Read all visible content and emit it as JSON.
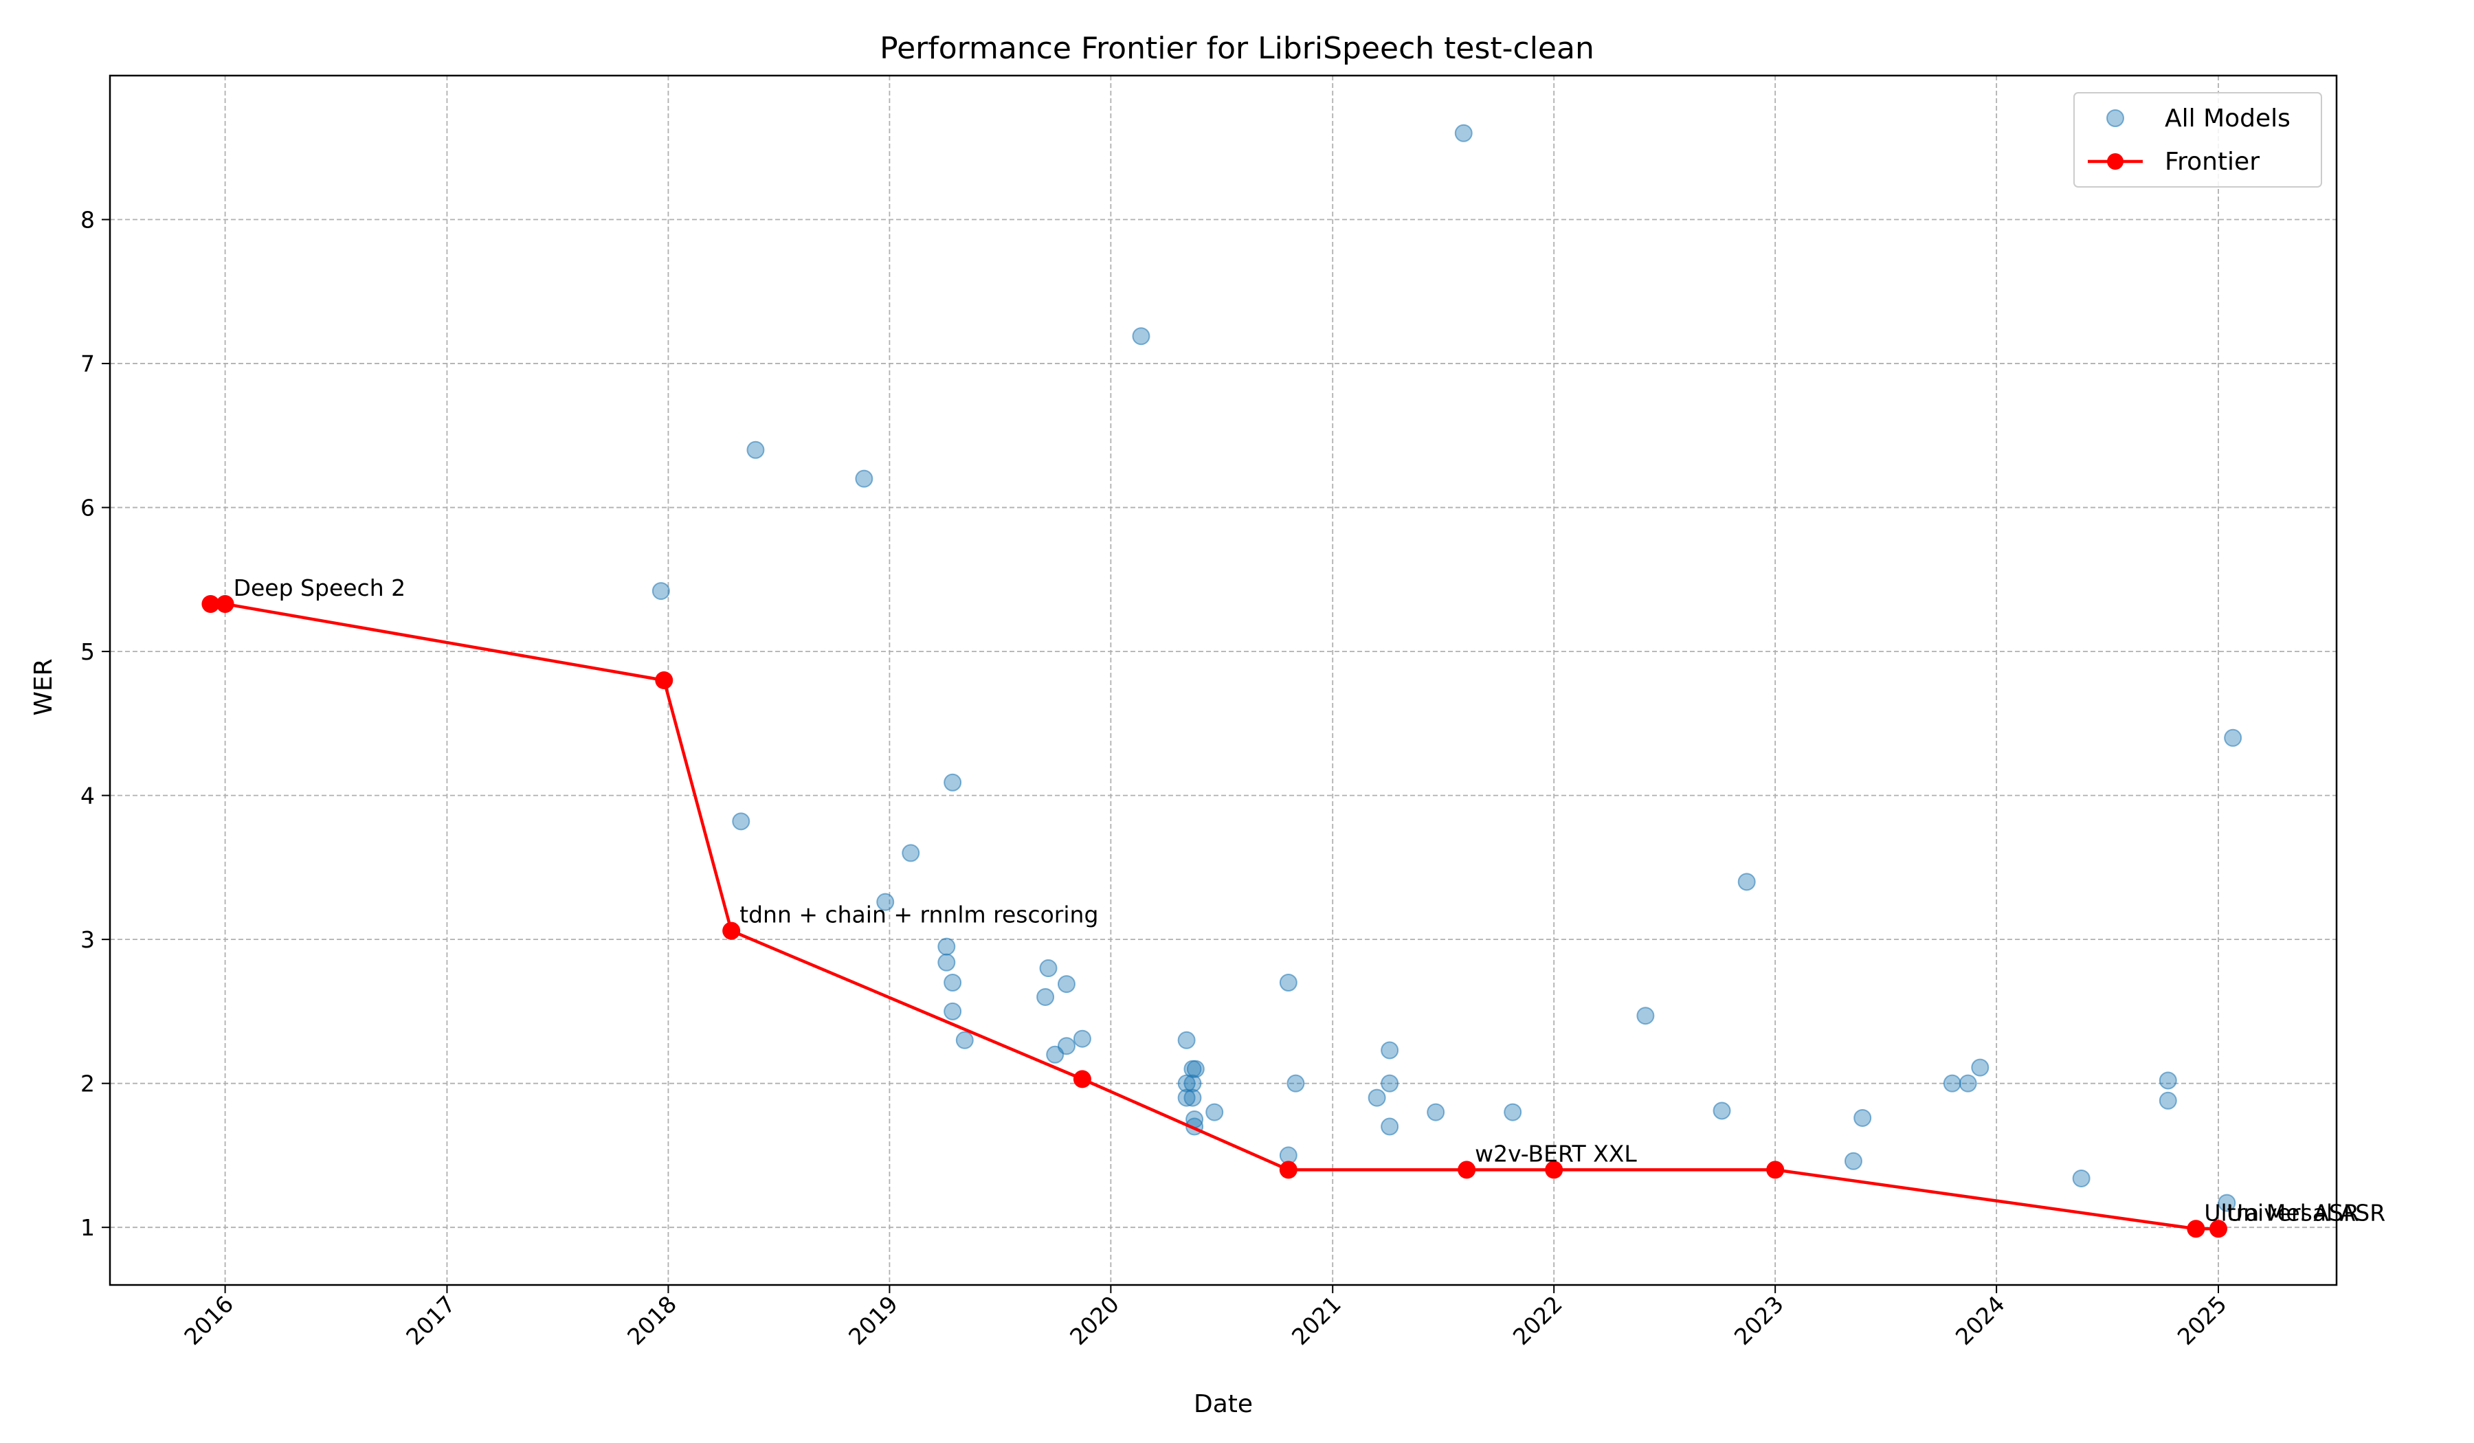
{
  "chart_data": {
    "type": "scatter",
    "title": "Performance Frontier for LibriSpeech test-clean",
    "xlabel": "Date",
    "ylabel": "WER",
    "x_type": "date",
    "xlim": [
      "2015-06-25",
      "2025-07-15"
    ],
    "ylim": [
      0.6,
      9.0
    ],
    "x_ticks": [
      "2016",
      "2017",
      "2018",
      "2019",
      "2020",
      "2021",
      "2022",
      "2023",
      "2024",
      "2025"
    ],
    "y_ticks": [
      1,
      2,
      3,
      4,
      5,
      6,
      7,
      8
    ],
    "grid": true,
    "legend_position": "top-right",
    "series": [
      {
        "name": "All Models",
        "type": "scatter",
        "color": "#1f77b4",
        "points": [
          [
            "2017-12-20",
            5.42
          ],
          [
            "2018-05-01",
            3.82
          ],
          [
            "2018-05-25",
            6.4
          ],
          [
            "2018-11-20",
            6.2
          ],
          [
            "2018-12-25",
            3.26
          ],
          [
            "2019-02-05",
            3.6
          ],
          [
            "2019-04-05",
            2.95
          ],
          [
            "2019-04-05",
            2.84
          ],
          [
            "2019-04-15",
            4.09
          ],
          [
            "2019-04-15",
            2.7
          ],
          [
            "2019-04-15",
            2.5
          ],
          [
            "2019-05-05",
            2.3
          ],
          [
            "2019-09-15",
            2.6
          ],
          [
            "2019-09-20",
            2.8
          ],
          [
            "2019-10-01",
            2.2
          ],
          [
            "2019-10-20",
            2.26
          ],
          [
            "2019-10-20",
            2.69
          ],
          [
            "2019-11-15",
            2.31
          ],
          [
            "2020-02-20",
            7.19
          ],
          [
            "2020-05-05",
            2.3
          ],
          [
            "2020-05-05",
            2.0
          ],
          [
            "2020-05-05",
            1.9
          ],
          [
            "2020-05-15",
            2.1
          ],
          [
            "2020-05-15",
            2.0
          ],
          [
            "2020-05-15",
            1.9
          ],
          [
            "2020-05-18",
            1.75
          ],
          [
            "2020-05-18",
            1.7
          ],
          [
            "2020-05-20",
            2.1
          ],
          [
            "2020-06-20",
            1.8
          ],
          [
            "2020-10-20",
            2.7
          ],
          [
            "2020-10-20",
            1.5
          ],
          [
            "2020-11-01",
            2.0
          ],
          [
            "2021-03-15",
            1.9
          ],
          [
            "2021-04-05",
            2.23
          ],
          [
            "2021-04-05",
            2.0
          ],
          [
            "2021-04-05",
            1.7
          ],
          [
            "2021-06-20",
            1.8
          ],
          [
            "2021-08-05",
            8.6
          ],
          [
            "2021-10-25",
            1.8
          ],
          [
            "2022-06-01",
            2.47
          ],
          [
            "2022-10-05",
            1.81
          ],
          [
            "2022-11-15",
            3.4
          ],
          [
            "2023-05-10",
            1.46
          ],
          [
            "2023-05-25",
            1.76
          ],
          [
            "2023-10-20",
            2.0
          ],
          [
            "2023-11-15",
            2.0
          ],
          [
            "2023-12-05",
            2.11
          ],
          [
            "2024-05-20",
            1.34
          ],
          [
            "2024-10-10",
            2.02
          ],
          [
            "2024-10-10",
            1.88
          ],
          [
            "2025-01-15",
            1.17
          ],
          [
            "2025-01-25",
            4.4
          ]
        ]
      },
      {
        "name": "Frontier",
        "type": "line",
        "color": "#ff0000",
        "points": [
          [
            "2015-12-08",
            5.33
          ],
          [
            "2016-01-01",
            5.33
          ],
          [
            "2017-12-25",
            4.8
          ],
          [
            "2018-04-15",
            3.06
          ],
          [
            "2019-11-15",
            2.03
          ],
          [
            "2020-10-20",
            1.4
          ],
          [
            "2021-08-10",
            1.4
          ],
          [
            "2022-01-01",
            1.4
          ],
          [
            "2023-01-01",
            1.4
          ],
          [
            "2024-11-25",
            0.99
          ],
          [
            "2025-01-01",
            0.99
          ]
        ]
      }
    ],
    "annotations": [
      {
        "text": "Deep Speech 2",
        "x": "2016-01-01",
        "y": 5.33
      },
      {
        "text": "tdnn + chain + rnnlm rescoring",
        "x": "2018-04-15",
        "y": 3.06
      },
      {
        "text": "w2v-BERT XXL",
        "x": "2021-08-10",
        "y": 1.4
      },
      {
        "text": "Ultra Mel ASR",
        "x": "2024-11-25",
        "y": 0.99
      },
      {
        "text": "Universal ASR",
        "x": "2025-01-01",
        "y": 0.99
      }
    ]
  }
}
